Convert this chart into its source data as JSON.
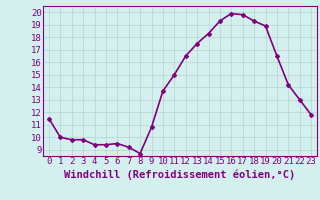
{
  "x": [
    0,
    1,
    2,
    3,
    4,
    5,
    6,
    7,
    8,
    9,
    10,
    11,
    12,
    13,
    14,
    15,
    16,
    17,
    18,
    19,
    20,
    21,
    22,
    23
  ],
  "y": [
    11.5,
    10.0,
    9.8,
    9.8,
    9.4,
    9.4,
    9.5,
    9.2,
    8.7,
    10.8,
    13.7,
    15.0,
    16.5,
    17.5,
    18.3,
    19.3,
    19.9,
    19.8,
    19.3,
    18.9,
    16.5,
    14.2,
    13.0,
    11.8
  ],
  "line_color": "#800080",
  "marker": "D",
  "marker_size": 2,
  "xlim": [
    -0.5,
    23.5
  ],
  "ylim": [
    8.5,
    20.5
  ],
  "yticks": [
    9,
    10,
    11,
    12,
    13,
    14,
    15,
    16,
    17,
    18,
    19,
    20
  ],
  "xticks": [
    0,
    1,
    2,
    3,
    4,
    5,
    6,
    7,
    8,
    9,
    10,
    11,
    12,
    13,
    14,
    15,
    16,
    17,
    18,
    19,
    20,
    21,
    22,
    23
  ],
  "xlabel": "Windchill (Refroidissement éolien,°C)",
  "bg_color": "#d4f0ee",
  "grid_color": "#b8d8d6",
  "line_width": 1.2,
  "tick_fontsize": 6.5,
  "label_fontsize": 7.5
}
